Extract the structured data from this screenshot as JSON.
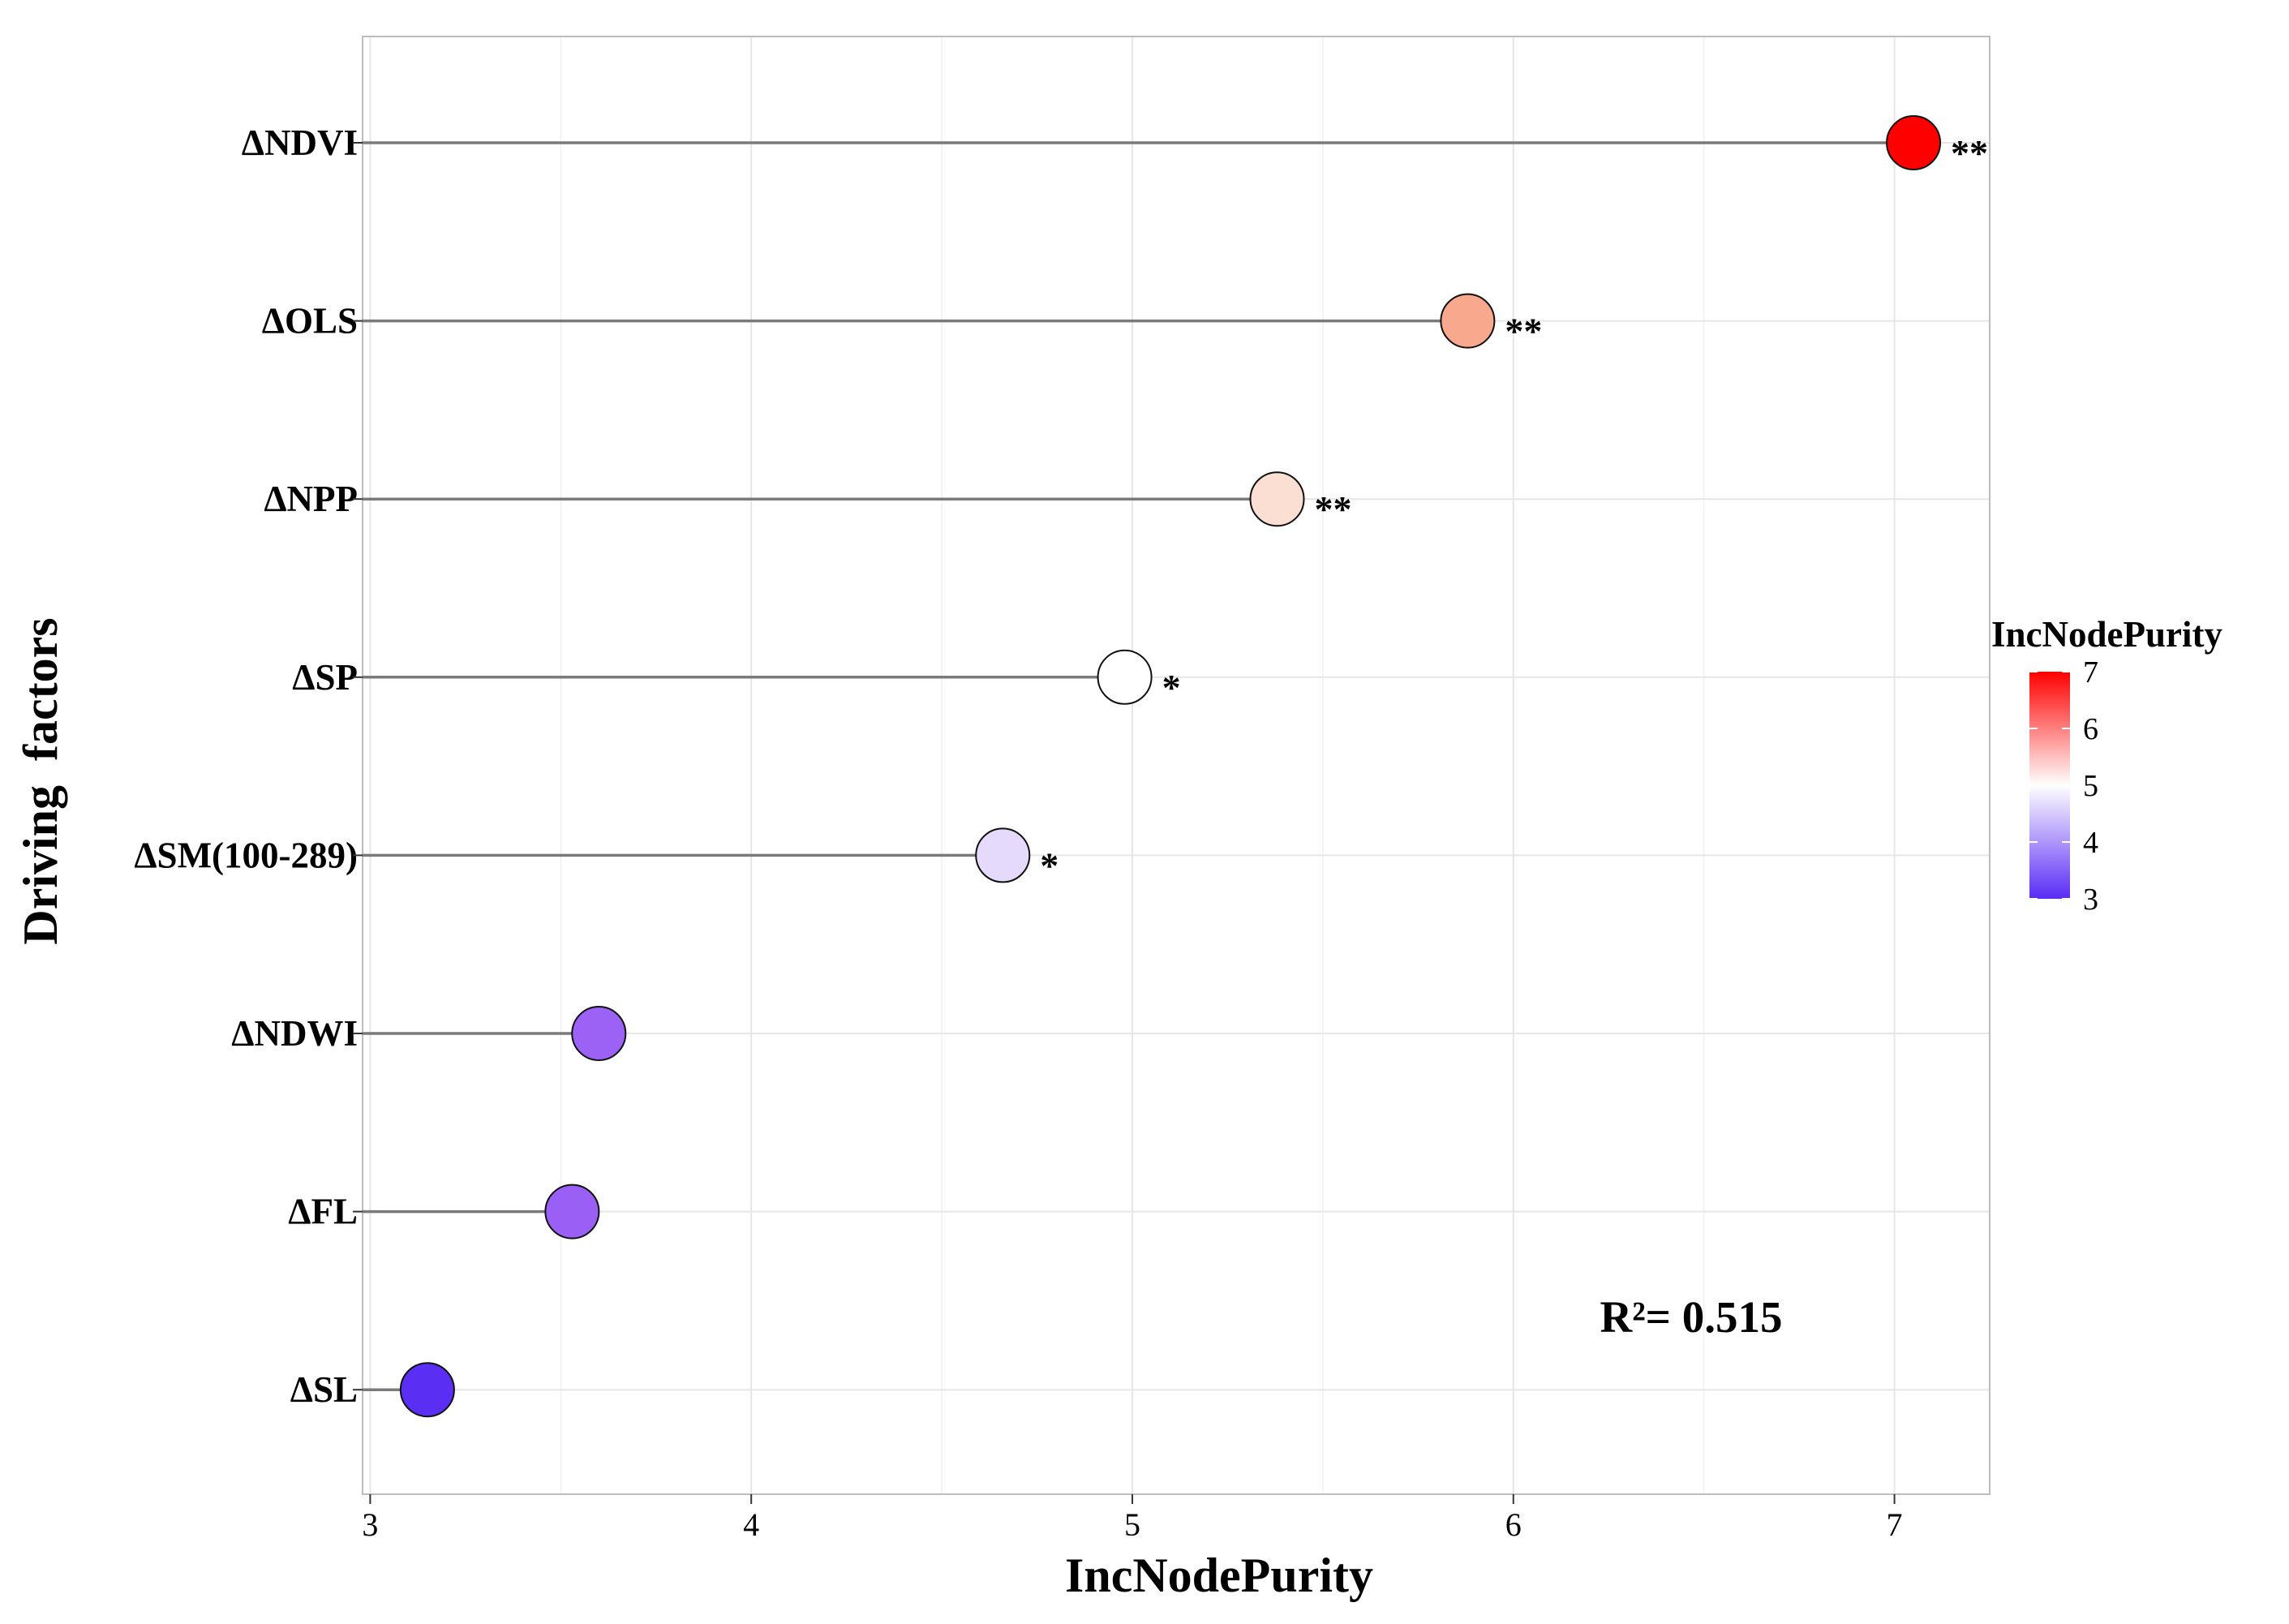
{
  "chart_data": {
    "type": "scatter",
    "subtype": "lollipop",
    "xlabel": "IncNodePurity",
    "ylabel": "Driving  factors",
    "xlim": [
      2.98,
      7.25
    ],
    "x_ticks": [
      3,
      4,
      5,
      6,
      7
    ],
    "grid": true,
    "categories": [
      "ΔNDVI",
      "ΔOLS",
      "ΔNPP",
      "ΔSP",
      "ΔSM(100-289)",
      "ΔNDWI",
      "ΔFL",
      "ΔSL"
    ],
    "values": [
      7.05,
      5.88,
      5.38,
      4.98,
      4.66,
      3.6,
      3.53,
      3.15
    ],
    "significance": [
      "**",
      "**",
      "**",
      "*",
      "*",
      "",
      "",
      ""
    ],
    "colors": [
      "#ff0000",
      "#f7a88d",
      "#fbdfd3",
      "#ffffff",
      "#e5dafb",
      "#9c62f5",
      "#9a60f5",
      "#5b2ff3"
    ],
    "annotation": "R²= 0.515",
    "legend": {
      "title": "IncNodePurity",
      "position": "right",
      "ticks": [
        3,
        4,
        5,
        6,
        7
      ],
      "low_color": "#5a2cf5",
      "mid_color": "#ffffff",
      "high_color": "#ff0000",
      "mid_value": 5
    }
  }
}
